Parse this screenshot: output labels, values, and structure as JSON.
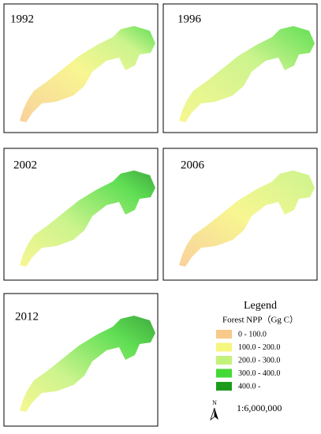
{
  "panels": [
    {
      "label": "1992"
    },
    {
      "label": "1996"
    },
    {
      "label": "2002"
    },
    {
      "label": "2006"
    },
    {
      "label": "2012"
    }
  ],
  "legend": {
    "title": "Legend",
    "subtitle": "Forest NPP（Gg C）",
    "items": [
      {
        "label": "0 - 100.0",
        "color": "#f8c98a"
      },
      {
        "label": "100.0  - 200.0",
        "color": "#f6f57e"
      },
      {
        "label": "200.0  - 300.0",
        "color": "#c3f27a"
      },
      {
        "label": "300.0  - 400.0",
        "color": "#45d936"
      },
      {
        "label": "400.0  -",
        "color": "#1c9c1c"
      }
    ]
  },
  "north_arrow": "N",
  "scale": "1:6,000,000"
}
